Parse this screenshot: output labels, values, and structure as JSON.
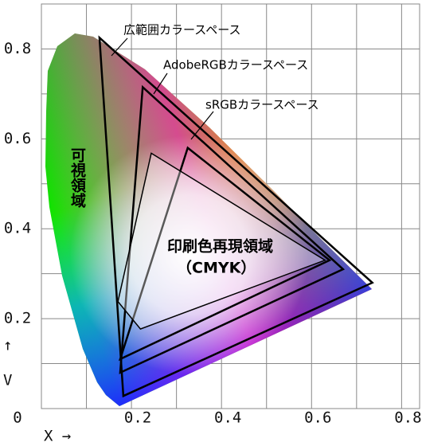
{
  "chart_data": {
    "type": "chromaticity",
    "xlim": [
      0,
      0.84
    ],
    "ylim": [
      0,
      0.9
    ],
    "xticks": [
      0.2,
      0.4,
      0.6,
      0.8
    ],
    "yticks": [
      0,
      0.2,
      0.4,
      0.6,
      0.8
    ],
    "xgrid": [
      0.1,
      0.2,
      0.3,
      0.4,
      0.5,
      0.6,
      0.7,
      0.8
    ],
    "ygrid": [
      0.1,
      0.2,
      0.3,
      0.4,
      0.5,
      0.6,
      0.7,
      0.8
    ],
    "xlabel": "X →",
    "ylabel": [
      "↑",
      "V"
    ],
    "locus_label": "可視領域",
    "series": [
      {
        "name": "広範囲カラースペース",
        "color": "#000000",
        "x": [
          0.129,
          0.735,
          0.182
        ],
        "y": [
          0.825,
          0.28,
          0.028
        ]
      },
      {
        "name": "AdobeRGBカラースペース",
        "color": "#000000",
        "x": [
          0.225,
          0.67,
          0.175
        ],
        "y": [
          0.715,
          0.31,
          0.08
        ]
      },
      {
        "name": "sRGBカラースペース",
        "color": "#000000",
        "x": [
          0.325,
          0.64,
          0.175
        ],
        "y": [
          0.58,
          0.33,
          0.11
        ]
      },
      {
        "name": "印刷色再現領域",
        "color": "#000000",
        "x": [
          0.244,
          0.63,
          0.22,
          0.17
        ],
        "y": [
          0.568,
          0.33,
          0.177,
          0.238
        ]
      }
    ],
    "cmyk_note": "（CMYK）"
  }
}
